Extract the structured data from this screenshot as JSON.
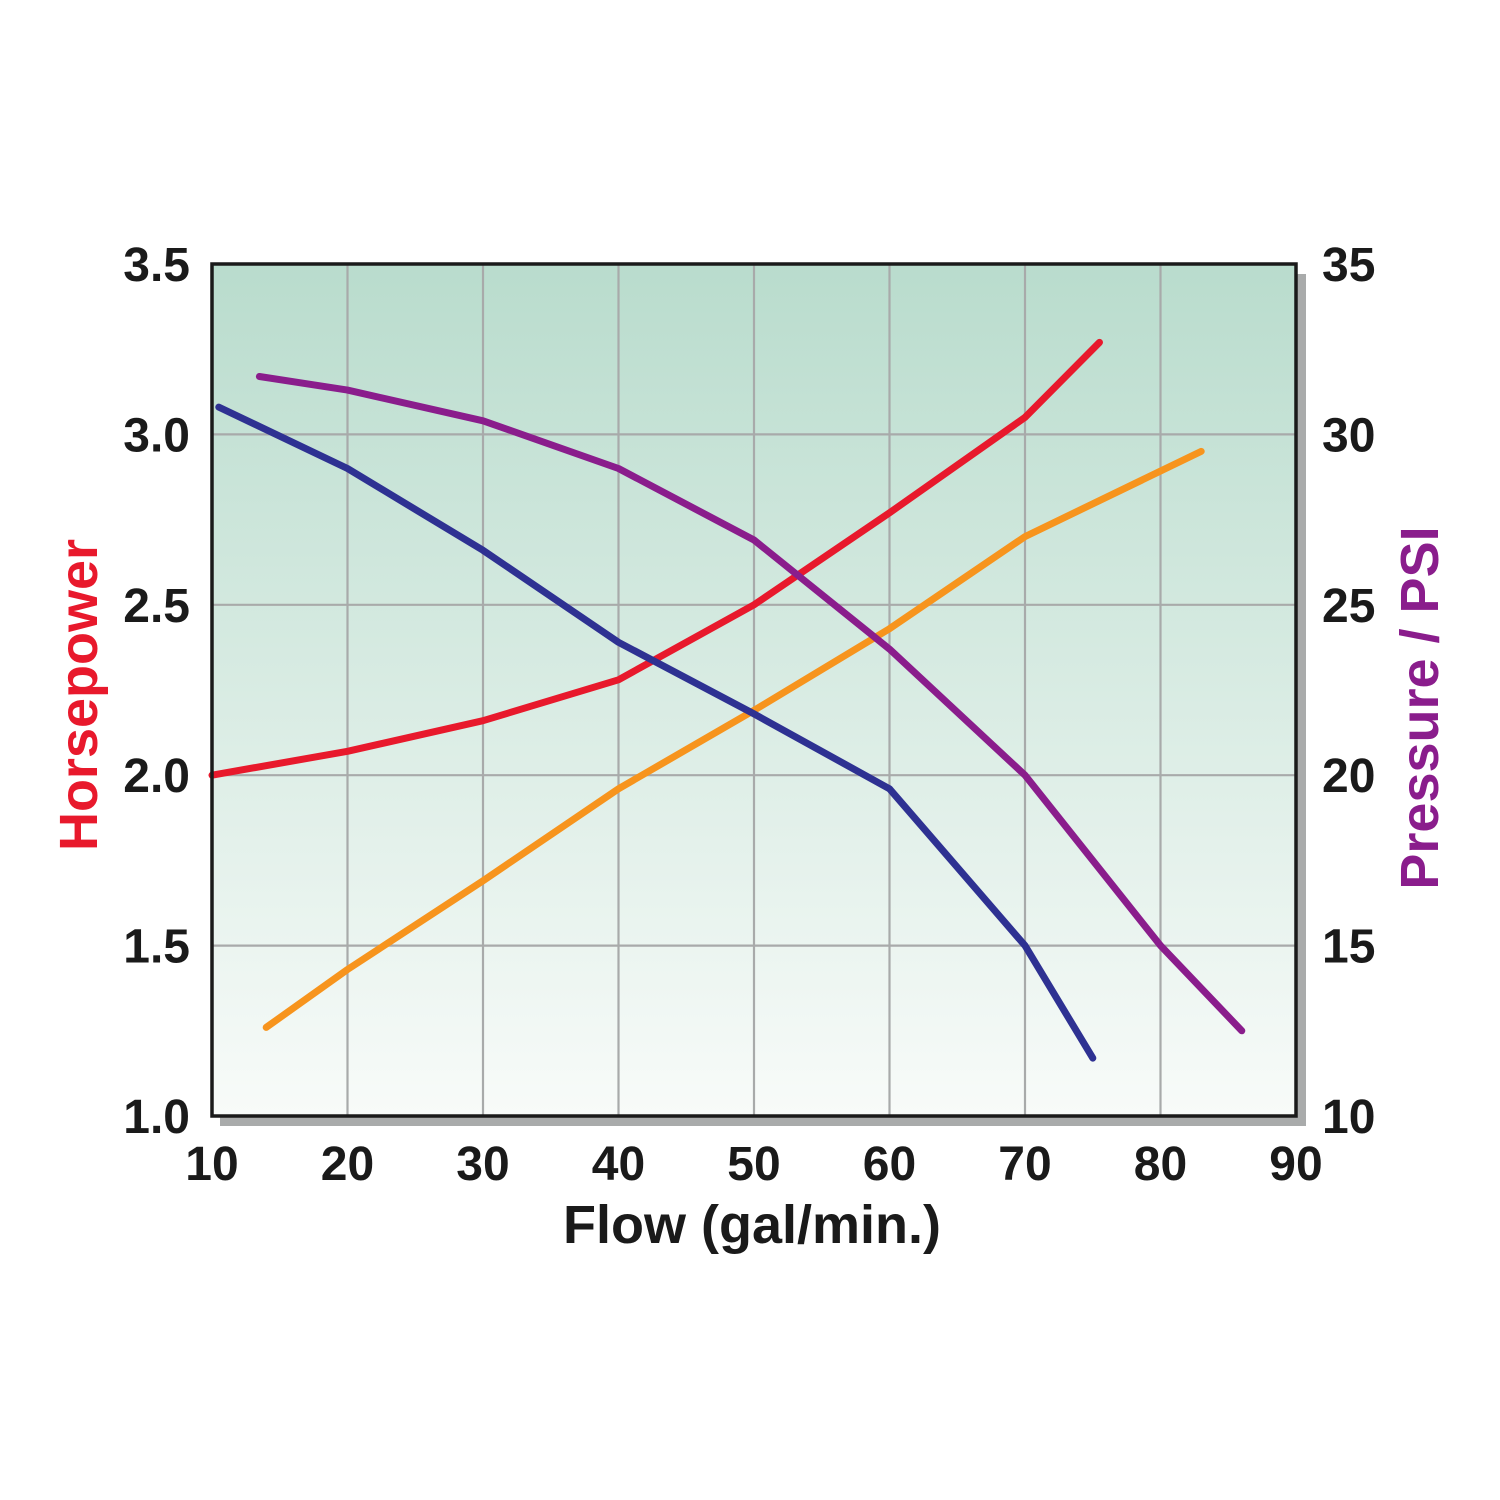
{
  "chart_data": {
    "type": "line",
    "xlabel": "Flow (gal/min.)",
    "ylabel_left": "Horsepower",
    "ylabel_right": "Pressure / PSI",
    "xlim": [
      10,
      90
    ],
    "ylim_left": [
      1.0,
      3.5
    ],
    "ylim_right": [
      10,
      35
    ],
    "x_ticks": [
      "10",
      "20",
      "30",
      "40",
      "50",
      "60",
      "70",
      "80",
      "90"
    ],
    "y_left_ticks": [
      "1.0",
      "1.5",
      "2.0",
      "2.5",
      "3.0",
      "3.5"
    ],
    "y_right_ticks": [
      "10",
      "15",
      "20",
      "25",
      "30",
      "35"
    ],
    "grid": true,
    "legend": "none",
    "colors": {
      "left_axis_title": "#e8192c",
      "right_axis_title": "#8a1d8c",
      "plot_bg_top": "#b9dccd",
      "plot_bg_bottom": "#f8fbf9",
      "grid": "#a8aaaa",
      "frame": "#1a1a1a",
      "shadow": "#a9abab"
    },
    "series": [
      {
        "color": "#e8192c",
        "axis": "left",
        "points": [
          [
            10,
            2.0
          ],
          [
            20,
            2.07
          ],
          [
            30,
            2.16
          ],
          [
            40,
            2.28
          ],
          [
            50,
            2.5
          ],
          [
            60,
            2.77
          ],
          [
            70,
            3.05
          ],
          [
            75.5,
            3.27
          ]
        ]
      },
      {
        "color": "#f7941d",
        "axis": "left",
        "points": [
          [
            14,
            1.26
          ],
          [
            20,
            1.43
          ],
          [
            30,
            1.69
          ],
          [
            40,
            1.96
          ],
          [
            50,
            2.19
          ],
          [
            60,
            2.43
          ],
          [
            70,
            2.7
          ],
          [
            83,
            2.95
          ]
        ]
      },
      {
        "color": "#2e3192",
        "axis": "left",
        "points": [
          [
            10.5,
            3.08
          ],
          [
            20,
            2.9
          ],
          [
            30,
            2.66
          ],
          [
            40,
            2.39
          ],
          [
            50,
            2.18
          ],
          [
            60,
            1.96
          ],
          [
            70,
            1.5
          ],
          [
            75,
            1.17
          ]
        ]
      },
      {
        "color": "#8a1d8c",
        "axis": "right",
        "points": [
          [
            13.5,
            31.7
          ],
          [
            20,
            31.3
          ],
          [
            30,
            30.4
          ],
          [
            40,
            29.0
          ],
          [
            50,
            26.9
          ],
          [
            60,
            23.7
          ],
          [
            70,
            20.0
          ],
          [
            80,
            15.0
          ],
          [
            86,
            12.5
          ]
        ]
      }
    ]
  }
}
